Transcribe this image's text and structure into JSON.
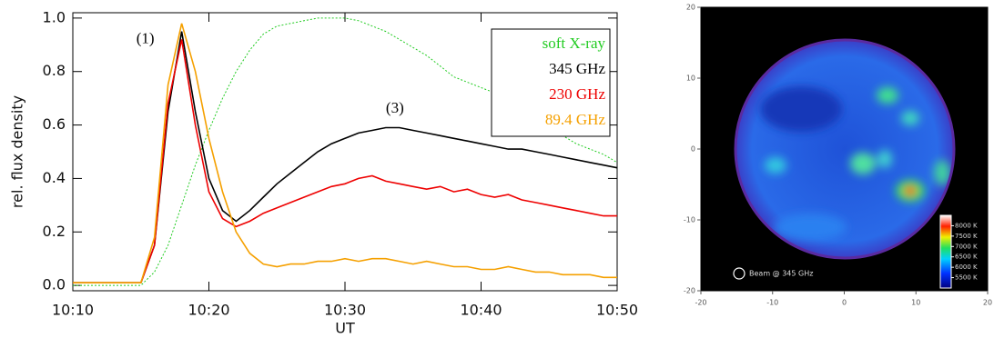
{
  "chart_data": [
    {
      "type": "line",
      "xlabel": "UT",
      "ylabel": "rel. flux density",
      "x": [
        "10:10",
        "10:11",
        "10:12",
        "10:13",
        "10:14",
        "10:15",
        "10:16",
        "10:17",
        "10:18",
        "10:19",
        "10:20",
        "10:21",
        "10:22",
        "10:23",
        "10:24",
        "10:25",
        "10:26",
        "10:27",
        "10:28",
        "10:29",
        "10:30",
        "10:31",
        "10:32",
        "10:33",
        "10:34",
        "10:35",
        "10:36",
        "10:37",
        "10:38",
        "10:39",
        "10:40",
        "10:41",
        "10:42",
        "10:43",
        "10:44",
        "10:45",
        "10:46",
        "10:47",
        "10:48",
        "10:49",
        "10:50"
      ],
      "xlim": [
        "10:10",
        "10:50"
      ],
      "xticks": [
        "10:10",
        "10:20",
        "10:30",
        "10:40",
        "10:50"
      ],
      "ylim": [
        -0.02,
        1.02
      ],
      "yticks": [
        {
          "value": 0,
          "label": "0.0"
        },
        {
          "value": 0.2,
          "label": "0.2"
        },
        {
          "value": 0.4,
          "label": "0.4"
        },
        {
          "value": 0.6,
          "label": "0.6"
        },
        {
          "value": 0.8,
          "label": "0.8"
        },
        {
          "value": 1,
          "label": "1.0"
        }
      ],
      "legend": "upper right",
      "annotations": [
        "(1)",
        "(3)"
      ],
      "series": [
        {
          "name": "soft X-ray",
          "color": "#22cc22",
          "dash": true,
          "values": [
            0,
            0,
            0,
            0,
            0,
            0,
            0.05,
            0.15,
            0.3,
            0.45,
            0.58,
            0.7,
            0.8,
            0.88,
            0.94,
            0.97,
            0.98,
            0.99,
            1,
            1,
            1,
            0.99,
            0.97,
            0.95,
            0.92,
            0.89,
            0.86,
            0.82,
            0.78,
            0.76,
            0.74,
            0.72,
            0.7,
            0.67,
            0.64,
            0.6,
            0.56,
            0.53,
            0.51,
            0.49,
            0.46
          ]
        },
        {
          "name": "345 GHz",
          "color": "#000000",
          "values": [
            0.01,
            0.01,
            0.01,
            0.01,
            0.01,
            0.01,
            0.15,
            0.65,
            0.95,
            0.65,
            0.4,
            0.28,
            0.24,
            0.28,
            0.33,
            0.38,
            0.42,
            0.46,
            0.5,
            0.53,
            0.55,
            0.57,
            0.58,
            0.59,
            0.59,
            0.58,
            0.57,
            0.56,
            0.55,
            0.54,
            0.53,
            0.52,
            0.51,
            0.51,
            0.5,
            0.49,
            0.48,
            0.47,
            0.46,
            0.45,
            0.44
          ]
        },
        {
          "name": "230 GHz",
          "color": "#ee0000",
          "values": [
            0.01,
            0.01,
            0.01,
            0.01,
            0.01,
            0.01,
            0.15,
            0.68,
            0.92,
            0.6,
            0.35,
            0.25,
            0.22,
            0.24,
            0.27,
            0.29,
            0.31,
            0.33,
            0.35,
            0.37,
            0.38,
            0.4,
            0.41,
            0.39,
            0.38,
            0.37,
            0.36,
            0.37,
            0.35,
            0.36,
            0.34,
            0.33,
            0.34,
            0.32,
            0.31,
            0.3,
            0.29,
            0.28,
            0.27,
            0.26,
            0.26
          ]
        },
        {
          "name": "89.4 GHz",
          "color": "#f5a000",
          "values": [
            0.01,
            0.01,
            0.01,
            0.01,
            0.01,
            0.01,
            0.18,
            0.75,
            0.98,
            0.8,
            0.55,
            0.35,
            0.2,
            0.12,
            0.08,
            0.07,
            0.08,
            0.08,
            0.09,
            0.09,
            0.1,
            0.09,
            0.1,
            0.1,
            0.09,
            0.08,
            0.09,
            0.08,
            0.07,
            0.07,
            0.06,
            0.06,
            0.07,
            0.06,
            0.05,
            0.05,
            0.04,
            0.04,
            0.04,
            0.03,
            0.03
          ]
        }
      ]
    },
    {
      "type": "map",
      "xlim": [
        -20,
        20
      ],
      "ylim": [
        -20,
        20
      ],
      "xticks": [
        -20,
        -10,
        0,
        10,
        20
      ],
      "yticks": [
        -20,
        -10,
        0,
        10,
        20
      ],
      "beam_label": "Beam @ 345 GHz",
      "clim": [
        5000,
        8500
      ],
      "cticks": [
        {
          "value": 5500,
          "label": "5500 K"
        },
        {
          "value": 6000,
          "label": "6000 K"
        },
        {
          "value": 6500,
          "label": "6500 K"
        },
        {
          "value": 7000,
          "label": "7000 K"
        },
        {
          "value": 7500,
          "label": "7500 K"
        },
        {
          "value": 8000,
          "label": "8000 K"
        }
      ]
    }
  ]
}
